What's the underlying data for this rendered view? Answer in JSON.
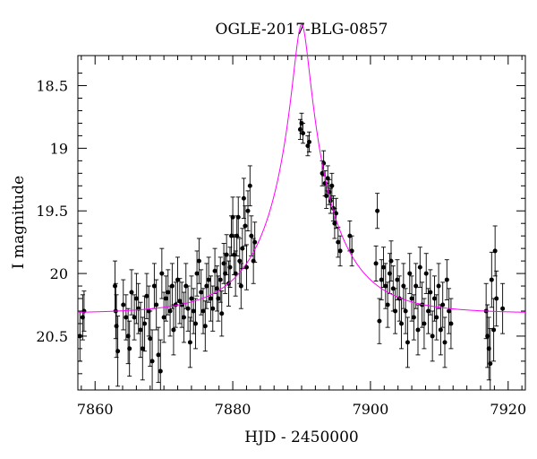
{
  "chart_data": {
    "type": "scatter",
    "title": "OGLE-2017-BLG-0857",
    "xlabel": "HJD - 2450000",
    "ylabel": "I magnitude",
    "xlim": [
      7857.5,
      7922.5
    ],
    "ylim": [
      20.93,
      18.26
    ],
    "y_inverted": true,
    "x_ticks": [
      7860,
      7880,
      7900,
      7920
    ],
    "y_ticks": [
      18.5,
      19,
      19.5,
      20,
      20.5
    ],
    "x_tick_labels": [
      "7860",
      "7880",
      "7900",
      "7920"
    ],
    "y_tick_labels": [
      "18.5",
      "19",
      "19.5",
      "20",
      "20.5"
    ],
    "grid": false,
    "model_color": "#ff00ff",
    "point_color": "#000000",
    "model": {
      "t0": 7890.0,
      "u0": 0.12,
      "tE": 9.2,
      "baseline": 20.32
    },
    "series": [
      {
        "values": [
          [
            7857.8,
            20.5,
            0.2
          ],
          [
            7858.2,
            20.35,
            0.18
          ],
          [
            7858.4,
            20.3,
            0.16
          ],
          [
            7862.9,
            20.1,
            0.2
          ],
          [
            7863.0,
            20.3,
            0.22
          ],
          [
            7863.1,
            20.42,
            0.25
          ],
          [
            7863.3,
            20.62,
            0.28
          ],
          [
            7864.1,
            20.25,
            0.2
          ],
          [
            7864.5,
            20.35,
            0.18
          ],
          [
            7864.8,
            20.5,
            0.22
          ],
          [
            7865.0,
            20.6,
            0.22
          ],
          [
            7865.3,
            20.15,
            0.18
          ],
          [
            7865.7,
            20.35,
            0.18
          ],
          [
            7866.0,
            20.2,
            0.2
          ],
          [
            7866.3,
            20.28,
            0.2
          ],
          [
            7866.6,
            20.45,
            0.22
          ],
          [
            7866.9,
            20.6,
            0.25
          ],
          [
            7867.2,
            20.4,
            0.22
          ],
          [
            7867.5,
            20.18,
            0.18
          ],
          [
            7867.8,
            20.3,
            0.2
          ],
          [
            7868.0,
            20.52,
            0.22
          ],
          [
            7868.3,
            20.7,
            0.25
          ],
          [
            7868.6,
            20.1,
            0.18
          ],
          [
            7868.9,
            20.25,
            0.2
          ],
          [
            7869.2,
            20.65,
            0.22
          ],
          [
            7869.5,
            20.78,
            0.25
          ],
          [
            7869.7,
            20.0,
            0.2
          ],
          [
            7870.0,
            20.35,
            0.2
          ],
          [
            7870.3,
            20.2,
            0.18
          ],
          [
            7870.6,
            20.15,
            0.18
          ],
          [
            7870.9,
            20.3,
            0.2
          ],
          [
            7871.2,
            20.1,
            0.18
          ],
          [
            7871.4,
            20.45,
            0.2
          ],
          [
            7871.7,
            20.25,
            0.18
          ],
          [
            7872.0,
            20.05,
            0.18
          ],
          [
            7872.3,
            20.22,
            0.18
          ],
          [
            7872.6,
            20.25,
            0.18
          ],
          [
            7872.9,
            20.35,
            0.2
          ],
          [
            7873.2,
            20.1,
            0.18
          ],
          [
            7873.5,
            20.28,
            0.18
          ],
          [
            7873.8,
            20.55,
            0.2
          ],
          [
            7874.0,
            20.2,
            0.18
          ],
          [
            7874.3,
            20.3,
            0.18
          ],
          [
            7874.6,
            20.4,
            0.2
          ],
          [
            7874.8,
            20.0,
            0.18
          ],
          [
            7875.1,
            19.9,
            0.18
          ],
          [
            7875.4,
            20.15,
            0.18
          ],
          [
            7875.7,
            20.3,
            0.18
          ],
          [
            7876.0,
            20.42,
            0.2
          ],
          [
            7876.2,
            20.1,
            0.18
          ],
          [
            7876.5,
            20.05,
            0.18
          ],
          [
            7876.8,
            20.2,
            0.18
          ],
          [
            7877.1,
            20.28,
            0.18
          ],
          [
            7877.4,
            19.98,
            0.18
          ],
          [
            7877.7,
            20.12,
            0.18
          ],
          [
            7877.9,
            20.2,
            0.18
          ],
          [
            7878.2,
            20.05,
            0.18
          ],
          [
            7878.4,
            20.32,
            0.18
          ],
          [
            7878.7,
            19.92,
            0.16
          ],
          [
            7878.9,
            20.0,
            0.16
          ],
          [
            7879.1,
            19.85,
            0.16
          ],
          [
            7879.4,
            20.08,
            0.18
          ],
          [
            7879.6,
            19.95,
            0.16
          ],
          [
            7879.8,
            19.7,
            0.16
          ],
          [
            7880.0,
            19.55,
            0.16
          ],
          [
            7880.2,
            19.85,
            0.16
          ],
          [
            7880.4,
            20.0,
            0.18
          ],
          [
            7880.6,
            19.7,
            0.16
          ],
          [
            7880.8,
            19.55,
            0.16
          ],
          [
            7881.0,
            19.9,
            0.18
          ],
          [
            7881.2,
            20.1,
            0.18
          ],
          [
            7881.4,
            19.8,
            0.16
          ],
          [
            7881.6,
            19.4,
            0.16
          ],
          [
            7881.8,
            19.62,
            0.16
          ],
          [
            7882.0,
            19.95,
            0.18
          ],
          [
            7882.2,
            19.5,
            0.16
          ],
          [
            7882.5,
            19.3,
            0.16
          ],
          [
            7882.7,
            19.7,
            0.16
          ],
          [
            7883.0,
            19.9,
            0.18
          ],
          [
            7883.2,
            19.75,
            0.16
          ],
          [
            7889.8,
            18.85,
            0.08
          ],
          [
            7890.0,
            18.8,
            0.08
          ],
          [
            7890.2,
            18.88,
            0.08
          ],
          [
            7890.9,
            18.98,
            0.08
          ],
          [
            7891.1,
            18.95,
            0.08
          ],
          [
            7893.0,
            19.2,
            0.1
          ],
          [
            7893.2,
            19.12,
            0.1
          ],
          [
            7893.4,
            19.28,
            0.1
          ],
          [
            7893.6,
            19.38,
            0.1
          ],
          [
            7893.8,
            19.24,
            0.1
          ],
          [
            7894.0,
            19.35,
            0.1
          ],
          [
            7894.2,
            19.42,
            0.1
          ],
          [
            7894.4,
            19.3,
            0.1
          ],
          [
            7894.6,
            19.48,
            0.1
          ],
          [
            7894.8,
            19.6,
            0.12
          ],
          [
            7895.0,
            19.52,
            0.12
          ],
          [
            7895.3,
            19.75,
            0.12
          ],
          [
            7895.6,
            19.82,
            0.12
          ],
          [
            7897.0,
            19.7,
            0.12
          ],
          [
            7897.3,
            19.82,
            0.12
          ],
          [
            7900.8,
            19.92,
            0.14
          ],
          [
            7901.0,
            19.5,
            0.14
          ],
          [
            7901.3,
            20.38,
            0.18
          ],
          [
            7901.6,
            20.05,
            0.16
          ],
          [
            7901.9,
            19.95,
            0.16
          ],
          [
            7902.2,
            20.1,
            0.18
          ],
          [
            7902.5,
            20.25,
            0.18
          ],
          [
            7902.8,
            20.0,
            0.16
          ],
          [
            7903.0,
            19.9,
            0.16
          ],
          [
            7903.3,
            20.12,
            0.18
          ],
          [
            7903.6,
            20.3,
            0.18
          ],
          [
            7903.9,
            20.05,
            0.16
          ],
          [
            7904.2,
            20.2,
            0.18
          ],
          [
            7904.5,
            20.4,
            0.2
          ],
          [
            7904.8,
            20.1,
            0.18
          ],
          [
            7905.1,
            20.3,
            0.18
          ],
          [
            7905.4,
            20.55,
            0.2
          ],
          [
            7905.7,
            20.0,
            0.16
          ],
          [
            7906.0,
            20.2,
            0.18
          ],
          [
            7906.3,
            20.35,
            0.18
          ],
          [
            7906.6,
            20.1,
            0.18
          ],
          [
            7906.9,
            20.45,
            0.2
          ],
          [
            7907.2,
            19.95,
            0.16
          ],
          [
            7907.5,
            20.25,
            0.18
          ],
          [
            7907.8,
            20.4,
            0.2
          ],
          [
            7908.1,
            20.0,
            0.16
          ],
          [
            7908.4,
            20.3,
            0.18
          ],
          [
            7908.7,
            20.15,
            0.18
          ],
          [
            7909.0,
            20.5,
            0.2
          ],
          [
            7909.3,
            20.2,
            0.18
          ],
          [
            7909.6,
            20.35,
            0.18
          ],
          [
            7909.9,
            20.1,
            0.18
          ],
          [
            7910.2,
            20.45,
            0.2
          ],
          [
            7910.5,
            20.25,
            0.18
          ],
          [
            7910.8,
            20.55,
            0.2
          ],
          [
            7911.1,
            20.05,
            0.16
          ],
          [
            7911.4,
            20.3,
            0.18
          ],
          [
            7911.7,
            20.4,
            0.2
          ],
          [
            7916.8,
            20.3,
            0.22
          ],
          [
            7917.0,
            20.5,
            0.25
          ],
          [
            7917.2,
            20.6,
            0.25
          ],
          [
            7917.4,
            20.72,
            0.28
          ],
          [
            7917.6,
            20.05,
            0.22
          ],
          [
            7917.9,
            20.45,
            0.25
          ],
          [
            7918.1,
            19.82,
            0.2
          ],
          [
            7918.3,
            20.2,
            0.22
          ],
          [
            7919.2,
            20.28,
            0.2
          ]
        ]
      }
    ]
  }
}
